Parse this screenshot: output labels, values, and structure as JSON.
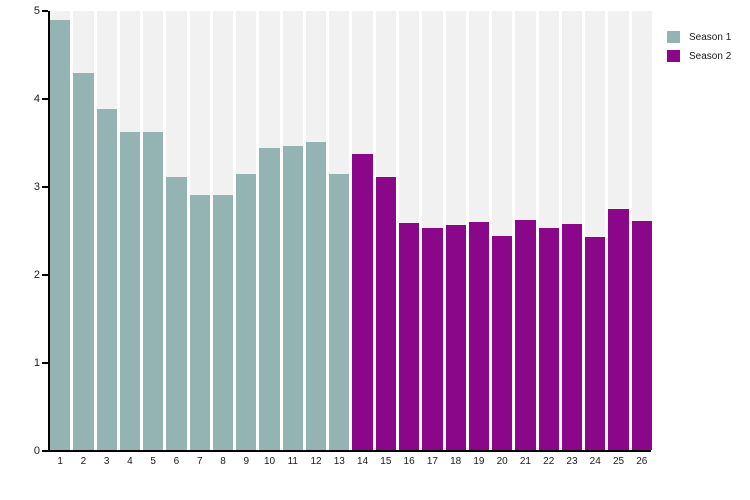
{
  "chart_data": {
    "type": "bar",
    "title": "",
    "xlabel": "",
    "ylabel": "",
    "categories": [
      "1",
      "2",
      "3",
      "4",
      "5",
      "6",
      "7",
      "8",
      "9",
      "10",
      "11",
      "12",
      "13",
      "14",
      "15",
      "16",
      "17",
      "18",
      "19",
      "20",
      "21",
      "22",
      "23",
      "24",
      "25",
      "26"
    ],
    "series": [
      {
        "name": "Season 1",
        "color": "#93b4b2",
        "categories": [
          "1",
          "2",
          "3",
          "4",
          "5",
          "6",
          "7",
          "8",
          "9",
          "10",
          "11",
          "12",
          "13"
        ],
        "values": [
          4.9,
          4.29,
          3.88,
          3.62,
          3.62,
          3.11,
          2.91,
          2.91,
          3.14,
          3.44,
          3.46,
          3.51,
          3.14
        ]
      },
      {
        "name": "Season 2",
        "color": "#8a078a",
        "categories": [
          "14",
          "15",
          "16",
          "17",
          "18",
          "19",
          "20",
          "21",
          "22",
          "23",
          "24",
          "25",
          "26"
        ],
        "values": [
          3.37,
          3.11,
          2.58,
          2.53,
          2.56,
          2.6,
          2.44,
          2.62,
          2.53,
          2.57,
          2.43,
          2.75,
          2.61
        ]
      }
    ],
    "ylim": [
      0,
      5
    ],
    "yticks": [
      "0",
      "1",
      "2",
      "3",
      "4",
      "5"
    ],
    "grid": false,
    "legend_position": "top-right",
    "plot_background_strip_color": "#f1f1f1",
    "axis_color": "#000000"
  }
}
